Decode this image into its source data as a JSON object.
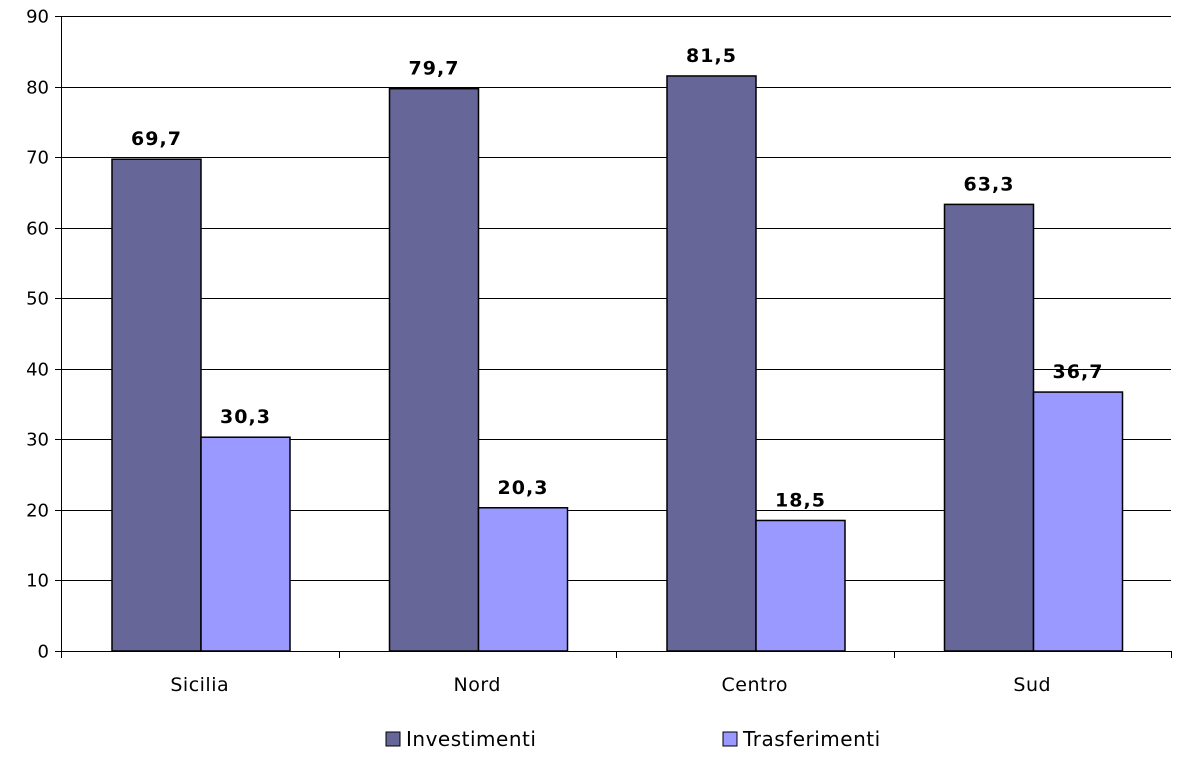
{
  "chart_data": {
    "type": "bar",
    "categories": [
      "Sicilia",
      "Nord",
      "Centro",
      "Sud"
    ],
    "series": [
      {
        "name": "Investimenti",
        "values": [
          69.7,
          79.7,
          81.5,
          63.3
        ],
        "labels": [
          "69,7",
          "79,7",
          "81,5",
          "63,3"
        ],
        "color": "#666699"
      },
      {
        "name": "Trasferimenti",
        "values": [
          30.3,
          20.3,
          18.5,
          36.7
        ],
        "labels": [
          "30,3",
          "20,3",
          "18,5",
          "36,7"
        ],
        "color": "#9999ff"
      }
    ],
    "ylim": [
      0,
      90
    ],
    "yticks": [
      0,
      10,
      20,
      30,
      40,
      50,
      60,
      70,
      80,
      90
    ],
    "grid": true,
    "legend": "bottom"
  }
}
